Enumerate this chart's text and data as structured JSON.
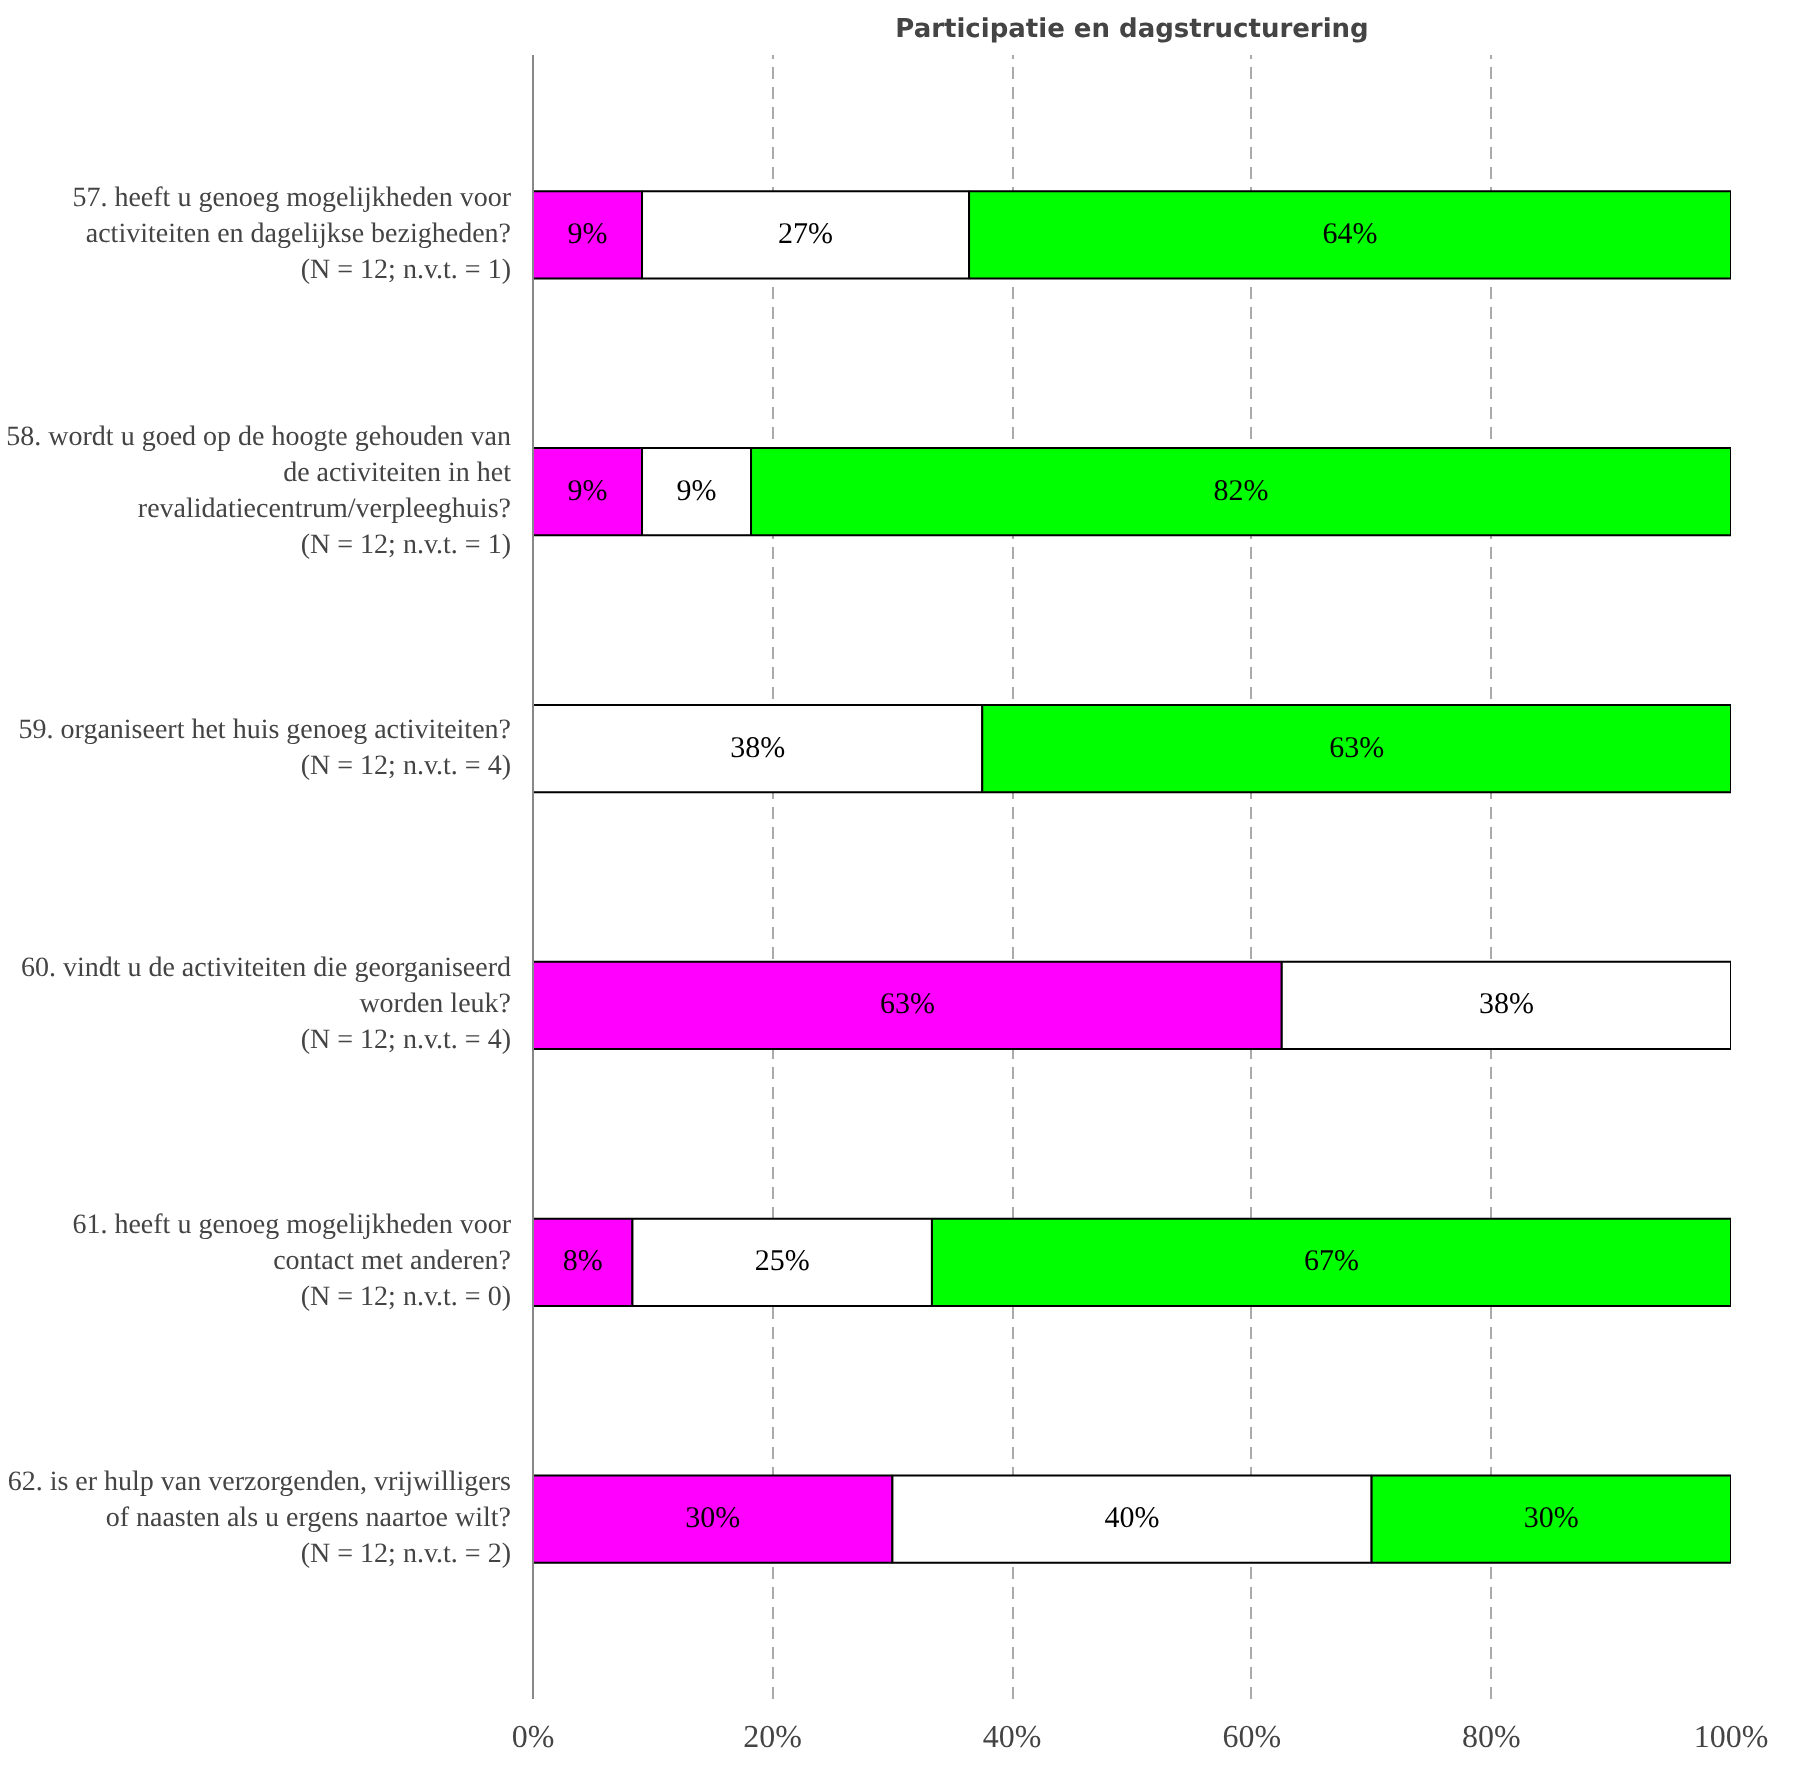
{
  "chart_data": {
    "type": "bar",
    "orientation": "horizontal",
    "stacked": true,
    "title": "Participatie en dagstructurering",
    "categories": [
      "57. heeft u genoeg mogelijkheden voor\nactiviteiten en dagelijkse bezigheden?\n(N = 12; n.v.t. = 1)",
      "58. wordt u goed op de hoogte gehouden van\nde activiteiten in het\nrevalidatiecentrum/verpleeghuis?\n(N = 12; n.v.t. = 1)",
      "59. organiseert het huis genoeg activiteiten?\n(N = 12; n.v.t. = 4)",
      "60. vindt u de activiteiten die georganiseerd\nworden leuk?\n(N = 12; n.v.t. = 4)",
      "61. heeft u genoeg mogelijkheden voor\ncontact met anderen?\n(N = 12; n.v.t. = 0)",
      "62. is er hulp van verzorgenden, vrijwilligers\nof naasten als u ergens naartoe wilt?\n(N = 12; n.v.t. = 2)"
    ],
    "series": [
      {
        "color": "#ff00ff",
        "values": [
          9.1,
          9.1,
          null,
          62.5,
          8.3,
          30
        ],
        "value_labels": [
          "9%",
          "9%",
          null,
          "63%",
          "8%",
          "30%"
        ]
      },
      {
        "color": "#ffffff",
        "values": [
          27.3,
          9.1,
          37.5,
          37.5,
          25,
          40
        ],
        "value_labels": [
          "27%",
          "9%",
          "38%",
          "38%",
          "25%",
          "40%"
        ]
      },
      {
        "color": "#00ff00",
        "values": [
          63.6,
          81.8,
          62.5,
          null,
          66.7,
          30
        ],
        "value_labels": [
          "64%",
          "82%",
          "63%",
          null,
          "67%",
          "30%"
        ]
      }
    ],
    "xlim": [
      0,
      100
    ],
    "xticks": [
      {
        "value": 0,
        "label": "0%"
      },
      {
        "value": 20,
        "label": "20%"
      },
      {
        "value": 40,
        "label": "40%"
      },
      {
        "value": 60,
        "label": "60%"
      },
      {
        "value": 80,
        "label": "80%"
      },
      {
        "value": 100,
        "label": "100%"
      }
    ],
    "grid": "x"
  }
}
